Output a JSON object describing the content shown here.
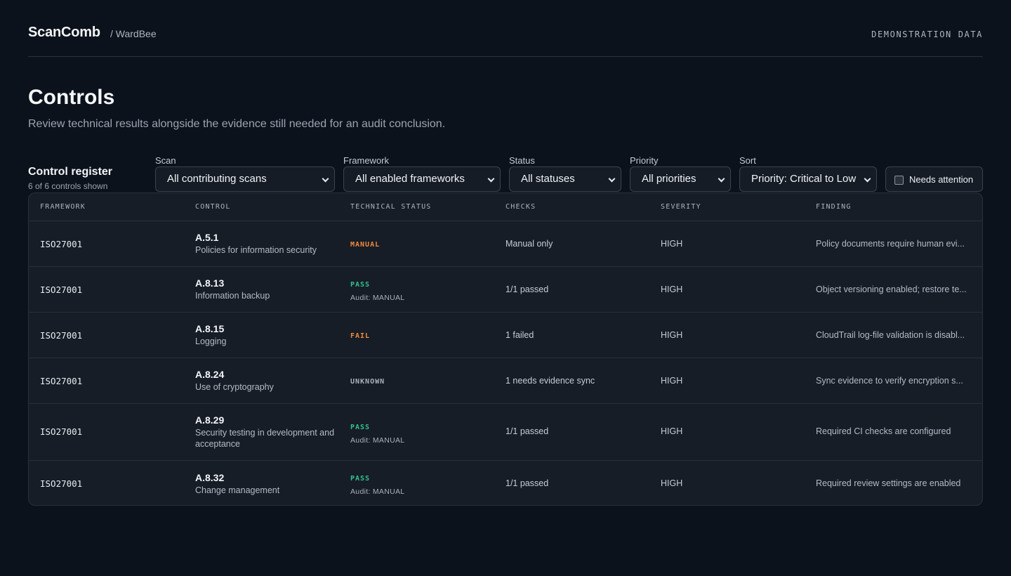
{
  "header": {
    "brand": "ScanComb",
    "crumb": "/ WardBee",
    "demo_label": "DEMONSTRATION DATA"
  },
  "page": {
    "title": "Controls",
    "subtitle": "Review technical results alongside the evidence still needed for an audit conclusion."
  },
  "register": {
    "title": "Control register",
    "count": "6 of 6 controls shown"
  },
  "filters": {
    "scan": {
      "label": "Scan",
      "value": "All contributing scans"
    },
    "framework": {
      "label": "Framework",
      "value": "All enabled frameworks"
    },
    "status": {
      "label": "Status",
      "value": "All statuses"
    },
    "priority": {
      "label": "Priority",
      "value": "All priorities"
    },
    "sort": {
      "label": "Sort",
      "value": "Priority: Critical to Low"
    },
    "needs_attention": {
      "label": "Needs attention",
      "checked": false
    }
  },
  "table": {
    "columns": [
      "FRAMEWORK",
      "CONTROL",
      "TECHNICAL STATUS",
      "CHECKS",
      "SEVERITY",
      "FINDING"
    ],
    "rows": [
      {
        "framework": "ISO27001",
        "control_id": "A.5.1",
        "control_name": "Policies for information security",
        "status": "MANUAL",
        "audit": "",
        "checks": "Manual only",
        "severity": "HIGH",
        "finding": "Policy documents require human evi..."
      },
      {
        "framework": "ISO27001",
        "control_id": "A.8.13",
        "control_name": "Information backup",
        "status": "PASS",
        "audit": "Audit: MANUAL",
        "checks": "1/1 passed",
        "severity": "HIGH",
        "finding": "Object versioning enabled; restore te..."
      },
      {
        "framework": "ISO27001",
        "control_id": "A.8.15",
        "control_name": "Logging",
        "status": "FAIL",
        "audit": "",
        "checks": "1 failed",
        "severity": "HIGH",
        "finding": "CloudTrail log-file validation is disabl..."
      },
      {
        "framework": "ISO27001",
        "control_id": "A.8.24",
        "control_name": "Use of cryptography",
        "status": "UNKNOWN",
        "audit": "",
        "checks": "1 needs evidence sync",
        "severity": "HIGH",
        "finding": "Sync evidence to verify encryption s..."
      },
      {
        "framework": "ISO27001",
        "control_id": "A.8.29",
        "control_name": "Security testing in development and acceptance",
        "status": "PASS",
        "audit": "Audit: MANUAL",
        "checks": "1/1 passed",
        "severity": "HIGH",
        "finding": "Required CI checks are configured"
      },
      {
        "framework": "ISO27001",
        "control_id": "A.8.32",
        "control_name": "Change management",
        "status": "PASS",
        "audit": "Audit: MANUAL",
        "checks": "1/1 passed",
        "severity": "HIGH",
        "finding": "Required review settings are enabled"
      }
    ]
  },
  "colors": {
    "pass": "#34c08a",
    "fail": "#f08a3c",
    "manual": "#f08a3c",
    "unknown": "#aab2bd"
  }
}
